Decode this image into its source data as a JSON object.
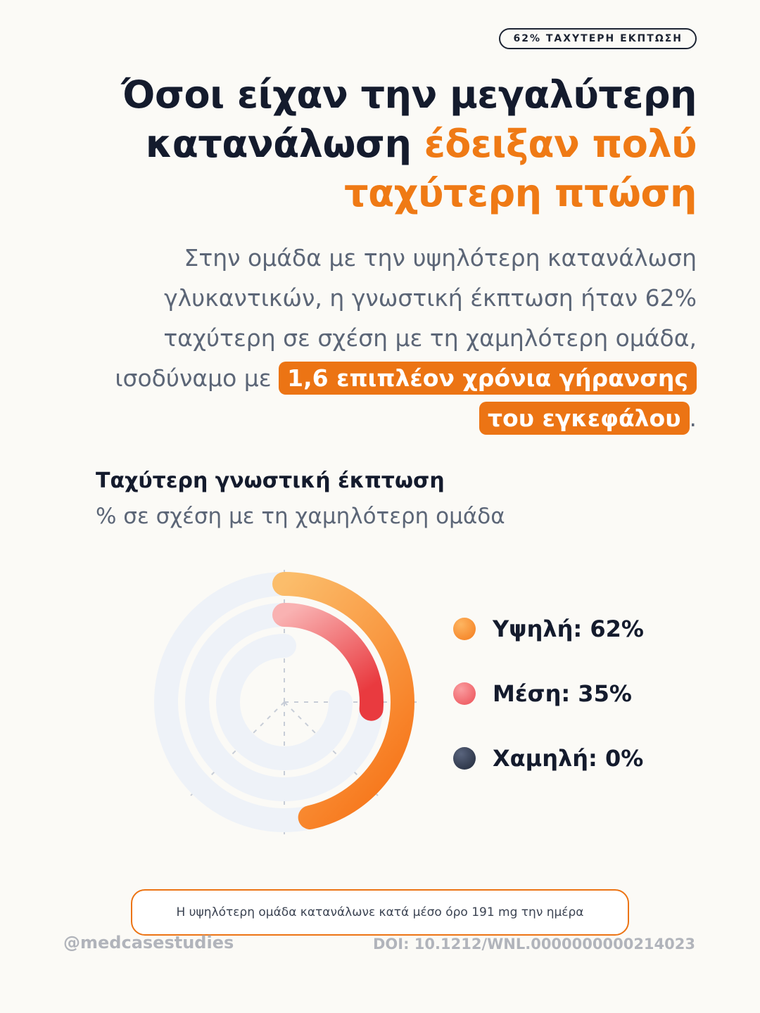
{
  "badge": "62% ΤΑΧΥΤΕΡΗ ΕΚΠΤΩΣΗ",
  "headline": {
    "line1": "Όσοι είχαν την μεγαλύτερη",
    "line2_dark": "κατανάλωση ",
    "line2_accent": "έδειξαν πολύ",
    "line3_accent": "ταχύτερη πτώση"
  },
  "lede": {
    "text": "Στην ομάδα με την υψηλότερη κατανάλωση γλυκαντικών, η γνωστική έκπτωση ήταν 62% ταχύτερη σε σχέση με τη χαμηλότερη ομάδα, ισοδύναμο με ",
    "highlight": "1,6 επιπλέον χρόνια γήρανσης του εγκεφάλου",
    "end": "."
  },
  "chart_data": {
    "type": "radial-bar",
    "title": "Ταχύτερη γνωστική έκπτωση",
    "subtitle": "% σε σχέση με τη χαμηλότερη ομάδα",
    "max": 100,
    "series": [
      {
        "name": "Υψηλή",
        "value": 62,
        "label": "Υψηλή: 62%",
        "color": "#f58a2c"
      },
      {
        "name": "Μέση",
        "value": 35,
        "label": "Μέση: 35%",
        "color": "#f06b70"
      },
      {
        "name": "Χαμηλή",
        "value": 0,
        "label": "Χαμηλή: 0%",
        "color": "#2b3446"
      }
    ],
    "track_color": "#eef2f8"
  },
  "note": "Η υψηλότερη ομάδα κατανάλωνε κατά μέσο όρο 191 mg την ημέρα",
  "footer": {
    "handle": "@medcasestudies",
    "doi": "DOI: 10.1212/WNL.0000000000214023"
  }
}
